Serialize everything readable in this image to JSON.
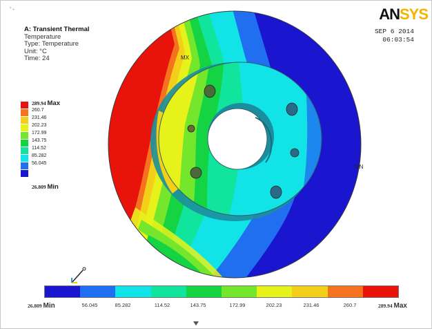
{
  "analysis": {
    "title": "A: Transient Thermal",
    "result": "Temperature",
    "type": "Type: Temperature",
    "unit": "Unit: °C",
    "time": "Time: 24"
  },
  "brand": {
    "logo_main": "AN",
    "logo_accent": "SYS"
  },
  "datetime": {
    "date": "SEP 6 2014",
    "time": "06:03:54"
  },
  "legend": {
    "max_tag": "Max",
    "min_tag": "Min",
    "values": [
      "289.94",
      "260.7",
      "231.46",
      "202.23",
      "172.99",
      "143.75",
      "114.52",
      "85.282",
      "56.045",
      "26.809"
    ],
    "colors": [
      "#e8140c",
      "#f5731f",
      "#f4cf19",
      "#e7f21a",
      "#74e72c",
      "#15d443",
      "#11e59d",
      "#12e3e6",
      "#1f6ff0",
      "#1a15ce"
    ]
  },
  "probes": {
    "max_label": "MX",
    "min_label": "MN"
  },
  "scale_bar": {
    "labels": [
      "26.809",
      "56.045",
      "85.282",
      "114.52",
      "143.75",
      "172.99",
      "202.23",
      "231.46",
      "260.7",
      "289.94"
    ],
    "min_tag": "Min",
    "max_tag": "Max"
  }
}
